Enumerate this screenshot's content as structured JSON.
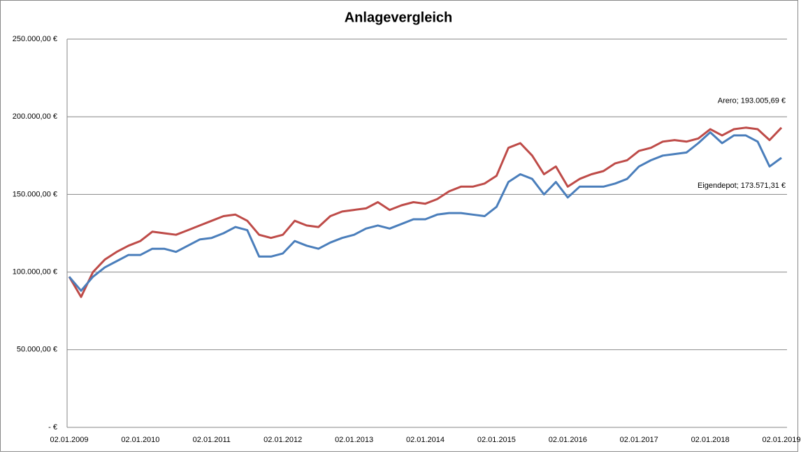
{
  "chart_data": {
    "type": "line",
    "title": "Anlagevergleich",
    "categories": [
      "02.01.2009",
      null,
      null,
      null,
      null,
      null,
      "02.01.2010",
      null,
      null,
      null,
      null,
      null,
      "02.01.2011",
      null,
      null,
      null,
      null,
      null,
      "02.01.2012",
      null,
      null,
      null,
      null,
      null,
      "02.01.2013",
      null,
      null,
      null,
      null,
      null,
      "02.01.2014",
      null,
      null,
      null,
      null,
      null,
      "02.01.2015",
      null,
      null,
      null,
      null,
      null,
      "02.01.2016",
      null,
      null,
      null,
      null,
      null,
      "02.01.2017",
      null,
      null,
      null,
      null,
      null,
      "02.01.2018",
      null,
      null,
      null,
      null,
      null,
      "02.01.2019"
    ],
    "series": [
      {
        "name": "Arero",
        "color": "#be4b48",
        "values": [
          97000,
          84000,
          100000,
          108000,
          113000,
          117000,
          120000,
          126000,
          125000,
          124000,
          127000,
          130000,
          133000,
          136000,
          137000,
          133000,
          124000,
          122000,
          124000,
          133000,
          130000,
          129000,
          136000,
          139000,
          140000,
          141000,
          145000,
          140000,
          143000,
          145000,
          144000,
          147000,
          152000,
          155000,
          155000,
          157000,
          162000,
          180000,
          183000,
          175000,
          163000,
          168000,
          155000,
          160000,
          163000,
          165000,
          170000,
          172000,
          178000,
          180000,
          184000,
          185000,
          184000,
          186000,
          192000,
          188000,
          192000,
          193000,
          192000,
          185000,
          193005.69
        ],
        "value_labels": [
          null,
          null,
          null,
          null,
          null,
          null,
          null,
          null,
          null,
          null,
          null,
          null,
          null,
          null,
          null,
          null,
          null,
          null,
          null,
          null,
          null,
          null,
          null,
          null,
          null,
          null,
          null,
          null,
          null,
          null,
          null,
          null,
          null,
          null,
          null,
          null,
          null,
          null,
          null,
          null,
          null,
          null,
          null,
          null,
          null,
          null,
          null,
          null,
          null,
          null,
          null,
          null,
          null,
          null,
          null,
          null,
          null,
          null,
          null,
          null,
          "Arero;  193.005,69 €"
        ]
      },
      {
        "name": "Eigendepot",
        "color": "#4a7ebb",
        "values": [
          97000,
          88000,
          97000,
          103000,
          107000,
          111000,
          111000,
          115000,
          115000,
          113000,
          117000,
          121000,
          122000,
          125000,
          129000,
          127000,
          110000,
          110000,
          112000,
          120000,
          117000,
          115000,
          119000,
          122000,
          124000,
          128000,
          130000,
          128000,
          131000,
          134000,
          134000,
          137000,
          138000,
          138000,
          137000,
          136000,
          142000,
          158000,
          163000,
          160000,
          150000,
          158000,
          148000,
          155000,
          155000,
          155000,
          157000,
          160000,
          168000,
          172000,
          175000,
          176000,
          177000,
          183000,
          190000,
          183000,
          188000,
          188000,
          184000,
          168000,
          173571.31
        ],
        "value_labels": [
          null,
          null,
          null,
          null,
          null,
          null,
          null,
          null,
          null,
          null,
          null,
          null,
          null,
          null,
          null,
          null,
          null,
          null,
          null,
          null,
          null,
          null,
          null,
          null,
          null,
          null,
          null,
          null,
          null,
          null,
          null,
          null,
          null,
          null,
          null,
          null,
          null,
          null,
          null,
          null,
          null,
          null,
          null,
          null,
          null,
          null,
          null,
          null,
          null,
          null,
          null,
          null,
          null,
          null,
          null,
          null,
          null,
          null,
          null,
          null,
          "Eigendepot;  173.571,31 €"
        ]
      }
    ],
    "ylim": [
      0,
      250000
    ],
    "yticks": [
      {
        "value": 0,
        "label": "-  €"
      },
      {
        "value": 50000,
        "label": "50.000,00 €"
      },
      {
        "value": 100000,
        "label": "100.000,00 €"
      },
      {
        "value": 150000,
        "label": "150.000,00 €"
      },
      {
        "value": 200000,
        "label": "200.000,00 €"
      },
      {
        "value": 250000,
        "label": "250.000,00 €"
      }
    ],
    "grid": true
  }
}
